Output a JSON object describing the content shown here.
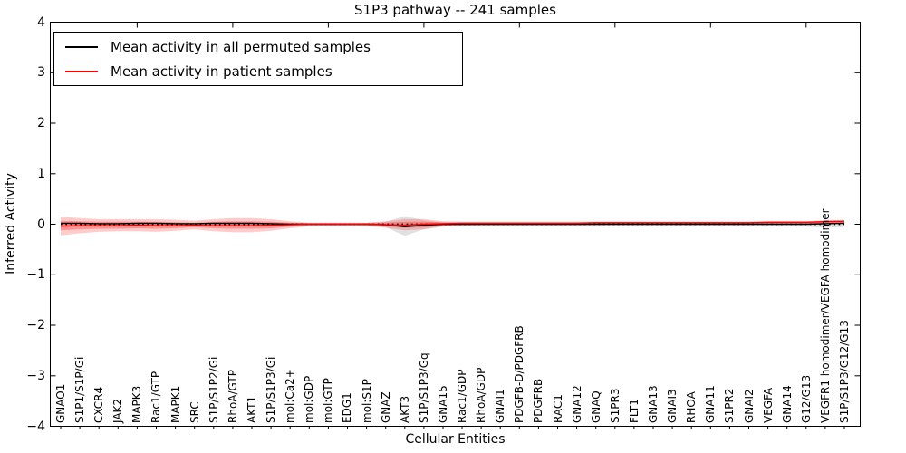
{
  "title": "S1P3 pathway -- 241 samples",
  "legend": {
    "items": [
      {
        "label": "Mean activity in all permuted samples",
        "color": "#000000"
      },
      {
        "label": "Mean activity in patient samples",
        "color": "#ff0000"
      }
    ]
  },
  "axes": {
    "ylabel": "Inferred Activity",
    "xlabel": "Cellular Entities",
    "yticks": [
      "4",
      "3",
      "2",
      "1",
      "0",
      "−1",
      "−2",
      "−3",
      "−4"
    ]
  },
  "chart_data": {
    "type": "line",
    "title": "S1P3 pathway -- 241 samples",
    "xlabel": "Cellular Entities",
    "ylabel": "Inferred Activity",
    "ylim": [
      -4,
      4
    ],
    "grid": false,
    "legend_position": "upper left",
    "zero_reference_line": {
      "y": 0,
      "style": "dotted",
      "color": "#000000"
    },
    "categories": [
      "GNAO1",
      "S1P1/S1P/Gi",
      "CXCR4",
      "JAK2",
      "MAPK3",
      "Rac1/GTP",
      "MAPK1",
      "SRC",
      "S1P/S1P2/Gi",
      "RhoA/GTP",
      "AKT1",
      "S1P/S1P3/Gi",
      "mol:Ca2+",
      "mol:GDP",
      "mol:GTP",
      "EDG1",
      "mol:S1P",
      "GNAZ",
      "AKT3",
      "S1P/S1P3/Gq",
      "GNA15",
      "Rac1/GDP",
      "RhoA/GDP",
      "GNAI1",
      "PDGFB-D/PDGFRB",
      "PDGFRB",
      "RAC1",
      "GNA12",
      "GNAQ",
      "S1PR3",
      "FLT1",
      "GNA13",
      "GNAI3",
      "RHOA",
      "GNA11",
      "S1PR2",
      "GNAI2",
      "VEGFA",
      "GNA14",
      "G12/G13",
      "VEGFR1 homodimer/VEGFA homodimer",
      "S1P/S1P3/G12/G13"
    ],
    "series": [
      {
        "name": "Mean activity in all permuted samples",
        "color": "#000000",
        "band_color": "#888888",
        "band_alpha": 0.25,
        "values": [
          0.02,
          0.02,
          0.01,
          0.01,
          0.02,
          0.02,
          0.01,
          0.01,
          0.02,
          0.02,
          0.02,
          0.01,
          0,
          0,
          0,
          0,
          0,
          -0.01,
          -0.05,
          -0.02,
          0,
          0,
          0,
          0,
          0,
          0,
          0,
          0,
          0,
          0,
          0,
          0,
          0,
          0,
          0,
          0,
          0,
          0,
          0,
          0,
          0.01,
          0.02
        ],
        "band_upper": [
          0.04,
          0.03,
          0.03,
          0.03,
          0.03,
          0.03,
          0.03,
          0.02,
          0.03,
          0.03,
          0.03,
          0.03,
          0.02,
          0.01,
          0.01,
          0.01,
          0.02,
          0.05,
          0.16,
          0.08,
          0.03,
          0.02,
          0.02,
          0.02,
          0.02,
          0.02,
          0.02,
          0.02,
          0.02,
          0.02,
          0.02,
          0.02,
          0.02,
          0.02,
          0.02,
          0.02,
          0.03,
          0.03,
          0.03,
          0.04,
          0.06,
          0.06
        ],
        "band_lower": [
          -0.02,
          -0.02,
          -0.02,
          -0.02,
          -0.02,
          -0.02,
          -0.02,
          -0.02,
          -0.02,
          -0.02,
          -0.02,
          -0.02,
          -0.02,
          -0.01,
          -0.01,
          -0.01,
          -0.02,
          -0.06,
          -0.23,
          -0.1,
          -0.03,
          -0.04,
          -0.04,
          -0.04,
          -0.04,
          -0.04,
          -0.04,
          -0.04,
          -0.04,
          -0.04,
          -0.04,
          -0.04,
          -0.04,
          -0.04,
          -0.04,
          -0.04,
          -0.04,
          -0.04,
          -0.04,
          -0.05,
          -0.07,
          -0.06
        ]
      },
      {
        "name": "Mean activity in patient samples",
        "color": "#ff0000",
        "band_color": "#ff0000",
        "band_alpha": 0.2,
        "values": [
          -0.04,
          -0.03,
          -0.03,
          -0.03,
          -0.02,
          -0.03,
          -0.03,
          -0.02,
          -0.03,
          -0.03,
          -0.03,
          -0.02,
          -0.01,
          0,
          0,
          0,
          0,
          -0.01,
          -0.02,
          0,
          0.01,
          0.02,
          0.02,
          0.02,
          0.02,
          0.02,
          0.02,
          0.02,
          0.03,
          0.03,
          0.03,
          0.03,
          0.03,
          0.03,
          0.03,
          0.03,
          0.03,
          0.04,
          0.04,
          0.04,
          0.05,
          0.06
        ],
        "band_upper": [
          0.15,
          0.12,
          0.1,
          0.1,
          0.1,
          0.1,
          0.09,
          0.07,
          0.1,
          0.12,
          0.12,
          0.1,
          0.06,
          0.03,
          0.03,
          0.03,
          0.03,
          0.06,
          0.1,
          0.1,
          0.06,
          0.05,
          0.05,
          0.05,
          0.05,
          0.05,
          0.05,
          0.05,
          0.05,
          0.05,
          0.05,
          0.05,
          0.05,
          0.05,
          0.05,
          0.05,
          0.05,
          0.06,
          0.06,
          0.06,
          0.08,
          0.08
        ],
        "band_lower": [
          -0.22,
          -0.18,
          -0.15,
          -0.14,
          -0.14,
          -0.15,
          -0.13,
          -0.1,
          -0.14,
          -0.16,
          -0.16,
          -0.13,
          -0.08,
          -0.04,
          -0.03,
          -0.03,
          -0.04,
          -0.07,
          -0.12,
          -0.1,
          -0.05,
          -0.03,
          -0.02,
          -0.02,
          -0.02,
          -0.02,
          -0.02,
          -0.02,
          -0.01,
          -0.01,
          -0.01,
          -0.01,
          -0.01,
          -0.01,
          -0.01,
          -0.01,
          -0.01,
          -0.01,
          -0.01,
          -0.01,
          0.0,
          0.01
        ],
        "inner_band_upper": [
          0.07,
          0.06,
          0.05,
          0.05,
          0.05,
          0.05,
          0.04,
          0.03,
          0.05,
          0.06,
          0.06,
          0.05,
          0.03,
          0.02,
          0.02,
          0.02,
          0.02,
          0.03,
          0.05,
          0.05,
          0.04,
          0.04,
          0.04,
          0.04,
          0.04,
          0.04,
          0.04,
          0.04,
          0.04,
          0.04,
          0.04,
          0.04,
          0.04,
          0.04,
          0.04,
          0.04,
          0.04,
          0.05,
          0.05,
          0.05,
          0.07,
          0.07
        ],
        "inner_band_lower": [
          -0.12,
          -0.1,
          -0.09,
          -0.09,
          -0.08,
          -0.09,
          -0.08,
          -0.06,
          -0.08,
          -0.09,
          -0.09,
          -0.08,
          -0.05,
          -0.02,
          -0.02,
          -0.02,
          -0.02,
          -0.04,
          -0.07,
          -0.06,
          -0.03,
          -0.01,
          -0.01,
          -0.01,
          -0.01,
          0,
          0,
          0,
          0,
          0,
          0,
          0,
          0,
          0,
          0,
          0,
          0,
          0.01,
          0.01,
          0.01,
          0.02,
          0.03
        ]
      }
    ]
  }
}
